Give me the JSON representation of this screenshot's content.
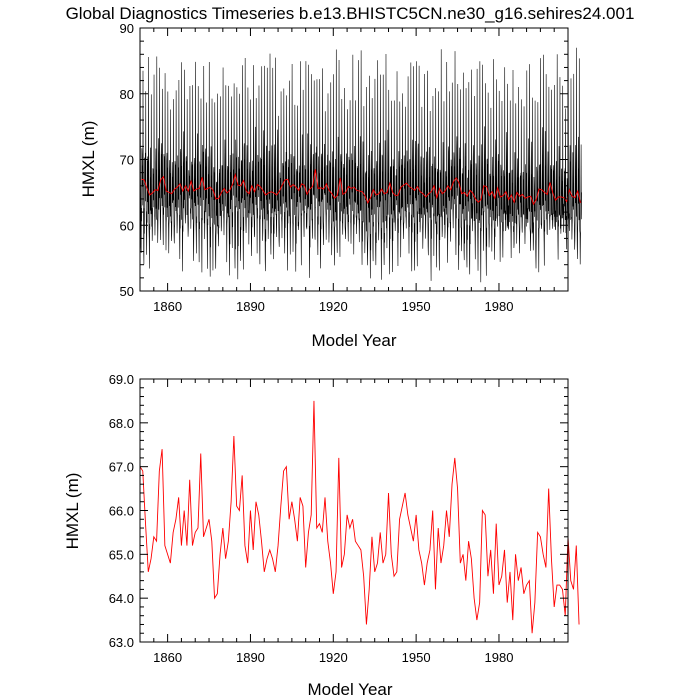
{
  "chart_data": [
    {
      "type": "line",
      "title": "Global Diagnostics Timeseries b.e13.BHISTC5CN.ne30_g16.sehires24.001",
      "xlabel": "Model Year",
      "ylabel": "HMXL (m)",
      "xlim": [
        1850,
        2005
      ],
      "ylim": [
        50,
        90
      ],
      "x_ticks": [
        "1860",
        "1890",
        "1920",
        "1950",
        "1980"
      ],
      "y_ticks": [
        "50",
        "60",
        "70",
        "80",
        "90"
      ],
      "grid": false,
      "series": [
        {
          "kind": "monthly",
          "color": "#000000",
          "envelope": "annual cycle between about 53-60 m (minima) and 78-86 m (maxima)"
        },
        {
          "kind": "annual-mean",
          "color": "#ff0000"
        }
      ]
    },
    {
      "type": "line",
      "title": "",
      "xlabel": "Model Year",
      "ylabel": "HMXL (m)",
      "xlim": [
        1850,
        2005
      ],
      "ylim": [
        63.0,
        69.0
      ],
      "x_ticks": [
        "1860",
        "1890",
        "1920",
        "1950",
        "1980"
      ],
      "y_ticks": [
        "63.0",
        "64.0",
        "65.0",
        "66.0",
        "67.0",
        "68.0",
        "69.0"
      ],
      "grid": false,
      "series": [
        {
          "kind": "annual-mean",
          "color": "#ff0000",
          "x_start": 1850,
          "x_step": 1,
          "values": [
            67.0,
            66.9,
            65.7,
            64.6,
            64.9,
            65.4,
            65.3,
            66.9,
            67.4,
            65.2,
            65.0,
            64.8,
            65.5,
            65.8,
            66.3,
            65.2,
            66.0,
            65.2,
            66.7,
            65.2,
            65.5,
            65.6,
            67.3,
            65.4,
            65.6,
            65.8,
            65.3,
            64.0,
            64.1,
            65.0,
            65.6,
            64.9,
            65.3,
            66.2,
            67.7,
            66.1,
            66.0,
            66.8,
            65.2,
            64.8,
            66.0,
            65.1,
            66.2,
            65.9,
            65.3,
            64.6,
            64.9,
            65.1,
            64.9,
            64.6,
            65.2,
            66.1,
            66.9,
            67.0,
            65.8,
            66.2,
            65.8,
            65.3,
            66.3,
            66.1,
            64.7,
            65.5,
            65.9,
            68.5,
            65.6,
            65.7,
            65.5,
            66.3,
            65.3,
            64.8,
            64.1,
            64.6,
            67.2,
            64.7,
            65.0,
            65.9,
            65.6,
            65.8,
            65.3,
            65.2,
            65.1,
            64.5,
            63.4,
            64.2,
            65.4,
            64.6,
            64.8,
            65.5,
            64.8,
            65.0,
            66.4,
            65.0,
            64.5,
            64.6,
            65.8,
            66.1,
            66.4,
            65.9,
            65.6,
            65.3,
            65.9,
            65.1,
            64.8,
            64.3,
            64.8,
            65.1,
            66.0,
            64.2,
            65.6,
            64.8,
            65.2,
            66.0,
            65.4,
            66.6,
            67.2,
            66.5,
            64.8,
            65.0,
            64.4,
            65.3,
            64.9,
            64.0,
            63.5,
            63.9,
            66.0,
            65.9,
            64.5,
            65.1,
            64.1,
            65.7,
            64.3,
            64.5,
            65.1,
            63.9,
            64.6,
            63.5,
            65.0,
            64.4,
            64.7,
            64.1,
            64.3,
            64.4,
            63.2,
            63.9,
            65.5,
            65.4,
            65.0,
            64.7,
            66.5,
            64.9,
            63.8,
            64.3,
            64.3,
            64.2,
            63.6,
            65.4,
            64.4,
            64.2,
            65.2,
            63.4
          ]
        }
      ]
    }
  ]
}
